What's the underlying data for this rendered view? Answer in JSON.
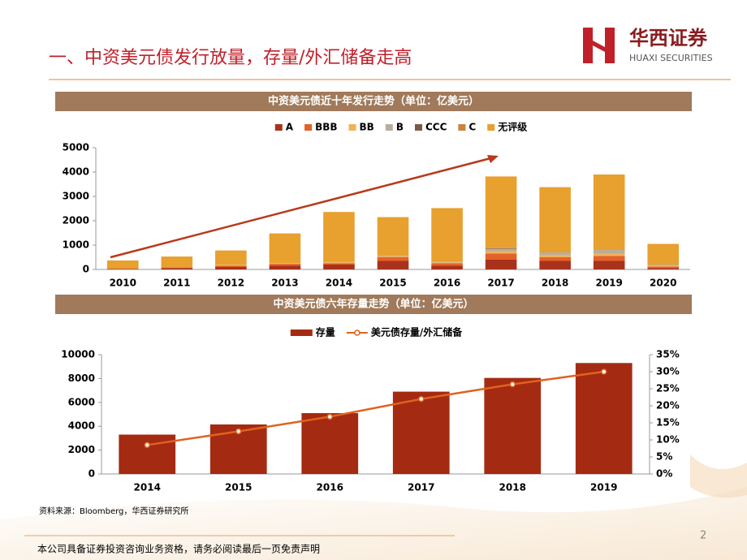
{
  "header": {
    "title": "一、中资美元债发行放量，存量/外汇储备走高",
    "logo_cn": "华西证券",
    "logo_en": "HUAXI SECURITIES"
  },
  "chart_data": [
    {
      "type": "bar",
      "stacked": true,
      "title": "中资美元债近十年发行走势（单位：亿美元）",
      "categories": [
        "2010",
        "2011",
        "2012",
        "2013",
        "2014",
        "2015",
        "2016",
        "2017",
        "2018",
        "2019",
        "2020"
      ],
      "series": [
        {
          "name": "A",
          "color": "#a8321b",
          "values": [
            20,
            60,
            100,
            150,
            200,
            350,
            150,
            400,
            350,
            350,
            60
          ]
        },
        {
          "name": "BBB",
          "color": "#e2622a",
          "values": [
            10,
            30,
            60,
            80,
            60,
            150,
            100,
            250,
            150,
            200,
            60
          ]
        },
        {
          "name": "BB",
          "color": "#f2b15a",
          "values": [
            0,
            10,
            20,
            30,
            40,
            50,
            40,
            100,
            100,
            100,
            40
          ]
        },
        {
          "name": "B",
          "color": "#b9ada0",
          "values": [
            0,
            0,
            10,
            0,
            20,
            20,
            20,
            100,
            100,
            150,
            40
          ]
        },
        {
          "name": "CCC",
          "color": "#7b5a47",
          "values": [
            0,
            0,
            0,
            0,
            0,
            0,
            0,
            20,
            0,
            0,
            0
          ]
        },
        {
          "name": "C",
          "color": "#c9823f",
          "values": [
            0,
            0,
            0,
            0,
            0,
            0,
            0,
            0,
            0,
            0,
            0
          ]
        },
        {
          "name": "无评级",
          "color": "#e8a02e",
          "values": [
            340,
            430,
            590,
            1220,
            2040,
            1580,
            2210,
            2950,
            2680,
            3100,
            850
          ]
        }
      ],
      "ylim": [
        0,
        5000
      ],
      "yticks": [
        0,
        1000,
        2000,
        3000,
        4000,
        5000
      ]
    },
    {
      "type": "combo",
      "title": "中资美元债六年存量走势（单位：亿美元）",
      "categories": [
        "2014",
        "2015",
        "2016",
        "2017",
        "2018",
        "2019"
      ],
      "series": [
        {
          "name": "存量",
          "color": "#a52a12",
          "values": [
            3300,
            4150,
            5100,
            6900,
            8050,
            9300
          ]
        },
        {
          "name": "美元债存量/外汇储备",
          "color": "#e0621f",
          "axis": "y2",
          "values": [
            8.5,
            12.5,
            16.8,
            22,
            26.3,
            30
          ]
        }
      ],
      "ylim": [
        0,
        10000
      ],
      "yticks": [
        0,
        2000,
        4000,
        6000,
        8000,
        10000
      ],
      "y2lim": [
        0,
        35
      ],
      "y2ticks": [
        {
          "value": 0,
          "label": "0%"
        },
        {
          "value": 5,
          "label": "5%"
        },
        {
          "value": 10,
          "label": "10%"
        },
        {
          "value": 15,
          "label": "15%"
        },
        {
          "value": 20,
          "label": "20%"
        },
        {
          "value": 25,
          "label": "25%"
        },
        {
          "value": 30,
          "label": "30%"
        },
        {
          "value": 35,
          "label": "35%"
        }
      ]
    }
  ],
  "source": "资料来源：Bloomberg，华西证券研究所",
  "footer": "本公司具备证券投资咨询业务资格，请务必阅读最后一页免责声明",
  "page_number": "2"
}
